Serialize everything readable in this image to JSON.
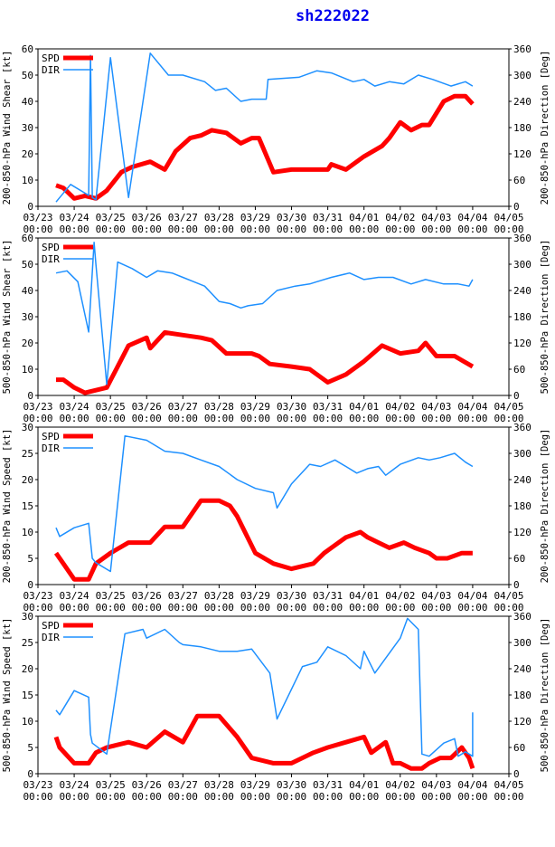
{
  "title": "sh222022",
  "colors": {
    "spd": "#ff0000",
    "dir": "#1e90ff",
    "axis": "#000000",
    "title": "#0000ee"
  },
  "chart_data": [
    {
      "type": "line",
      "ylabel": "200-850-hPa Wind Shear [kt]",
      "y2label": "200-850-hPa Direction [Deg]",
      "ylim": [
        0,
        60
      ],
      "yticks": [
        0,
        10,
        20,
        30,
        40,
        50,
        60
      ],
      "y2lim": [
        0,
        360
      ],
      "y2ticks": [
        0,
        60,
        120,
        180,
        240,
        300,
        360
      ],
      "xlim": [
        0,
        13
      ],
      "xticks": [
        "03/23",
        "03/24",
        "03/25",
        "03/26",
        "03/27",
        "03/28",
        "03/29",
        "03/30",
        "03/31",
        "04/01",
        "04/02",
        "04/03",
        "04/04",
        "04/05"
      ],
      "xtick_time": "00:00",
      "legend": [
        "SPD",
        "DIR"
      ],
      "series": [
        {
          "name": "SPD",
          "axis": "left",
          "x": [
            0.5,
            0.7,
            1.0,
            1.3,
            1.6,
            1.9,
            2.3,
            2.6,
            3.1,
            3.5,
            3.8,
            4.2,
            4.5,
            4.8,
            5.2,
            5.6,
            5.9,
            6.1,
            6.5,
            7.0,
            7.5,
            8.0,
            8.1,
            8.5,
            9.0,
            9.5,
            9.7,
            10.0,
            10.3,
            10.6,
            10.8,
            11.2,
            11.5,
            11.8,
            12.0
          ],
          "y": [
            8,
            7,
            3,
            4,
            3,
            6,
            13,
            15,
            17,
            14,
            21,
            26,
            27,
            29,
            28,
            24,
            26,
            26,
            13,
            14,
            14,
            14,
            16,
            14,
            19,
            23,
            26,
            32,
            29,
            31,
            31,
            40,
            42,
            42,
            39
          ]
        },
        {
          "name": "DIR",
          "axis": "right",
          "x": [
            0.5,
            0.9,
            1.4,
            1.45,
            1.5,
            1.6,
            2.0,
            2.5,
            3.1,
            3.6,
            4.0,
            4.6,
            4.9,
            5.2,
            5.6,
            5.9,
            6.3,
            6.35,
            7.2,
            7.7,
            8.1,
            8.7,
            9.0,
            9.3,
            9.7,
            10.1,
            10.5,
            10.9,
            11.4,
            11.8,
            12.0
          ],
          "y": [
            10,
            50,
            25,
            345,
            20,
            15,
            340,
            20,
            350,
            300,
            300,
            285,
            265,
            270,
            240,
            245,
            245,
            290,
            295,
            310,
            305,
            285,
            290,
            275,
            285,
            280,
            300,
            290,
            275,
            285,
            275
          ]
        }
      ]
    },
    {
      "type": "line",
      "ylabel": "500-850-hPa Wind Shear [kt]",
      "y2label": "500-850-hPa Direction [Deg]",
      "ylim": [
        0,
        60
      ],
      "yticks": [
        0,
        10,
        20,
        30,
        40,
        50,
        60
      ],
      "y2lim": [
        0,
        360
      ],
      "y2ticks": [
        0,
        60,
        120,
        180,
        240,
        300,
        360
      ],
      "xlim": [
        0,
        13
      ],
      "xticks": [
        "03/23",
        "03/24",
        "03/25",
        "03/26",
        "03/27",
        "03/28",
        "03/29",
        "03/30",
        "03/31",
        "04/01",
        "04/02",
        "04/03",
        "04/04",
        "04/05"
      ],
      "xtick_time": "00:00",
      "legend": [
        "SPD",
        "DIR"
      ],
      "series": [
        {
          "name": "SPD",
          "axis": "left",
          "x": [
            0.5,
            0.7,
            1.0,
            1.3,
            1.6,
            1.9,
            2.5,
            3.0,
            3.1,
            3.5,
            4.0,
            4.5,
            4.8,
            5.2,
            5.5,
            5.9,
            6.1,
            6.4,
            7.0,
            7.5,
            8.0,
            8.5,
            9.0,
            9.5,
            10.0,
            10.5,
            10.7,
            11.0,
            11.5,
            12.0
          ],
          "y": [
            6,
            6,
            3,
            1,
            2,
            3,
            19,
            22,
            18,
            24,
            23,
            22,
            21,
            16,
            16,
            16,
            15,
            12,
            11,
            10,
            5,
            8,
            13,
            19,
            16,
            17,
            20,
            15,
            15,
            11
          ]
        },
        {
          "name": "DIR",
          "axis": "right",
          "x": [
            0.5,
            0.8,
            1.1,
            1.4,
            1.55,
            1.6,
            1.9,
            2.2,
            2.6,
            3.0,
            3.3,
            3.7,
            4.0,
            4.3,
            4.6,
            5.0,
            5.3,
            5.6,
            5.8,
            6.2,
            6.6,
            7.1,
            7.5,
            7.7,
            8.1,
            8.6,
            9.0,
            9.4,
            9.8,
            10.3,
            10.7,
            11.2,
            11.6,
            11.9,
            12.0
          ],
          "y": [
            280,
            285,
            260,
            145,
            350,
            300,
            25,
            305,
            290,
            270,
            285,
            280,
            270,
            260,
            250,
            215,
            210,
            200,
            205,
            210,
            240,
            250,
            255,
            260,
            270,
            280,
            265,
            270,
            270,
            255,
            265,
            255,
            255,
            250,
            265
          ]
        }
      ]
    },
    {
      "type": "line",
      "ylabel": "200-850-hPa Wind Speed [kt]",
      "y2label": "200-850-hPa Direction [Deg]",
      "ylim": [
        0,
        30
      ],
      "yticks": [
        0,
        5,
        10,
        15,
        20,
        25,
        30
      ],
      "y2lim": [
        0,
        360
      ],
      "y2ticks": [
        0,
        60,
        120,
        180,
        240,
        300,
        360
      ],
      "xlim": [
        0,
        13
      ],
      "xticks": [
        "03/23",
        "03/24",
        "03/25",
        "03/26",
        "03/27",
        "03/28",
        "03/29",
        "03/30",
        "03/31",
        "04/01",
        "04/02",
        "04/03",
        "04/04",
        "04/05"
      ],
      "xtick_time": "00:00",
      "legend": [
        "SPD",
        "DIR"
      ],
      "series": [
        {
          "name": "SPD",
          "axis": "left",
          "x": [
            0.5,
            0.7,
            1.0,
            1.4,
            1.6,
            2.0,
            2.5,
            3.1,
            3.5,
            4.0,
            4.5,
            5.0,
            5.3,
            5.5,
            6.0,
            6.5,
            7.0,
            7.6,
            7.9,
            8.1,
            8.5,
            8.9,
            9.1,
            9.4,
            9.7,
            10.1,
            10.4,
            10.8,
            11.0,
            11.3,
            11.7,
            12.0
          ],
          "y": [
            6,
            4,
            1,
            1,
            4,
            6,
            8,
            8,
            11,
            11,
            16,
            16,
            15,
            13,
            6,
            4,
            3,
            4,
            6,
            7,
            9,
            10,
            9,
            8,
            7,
            8,
            7,
            6,
            5,
            5,
            6,
            6
          ]
        },
        {
          "name": "DIR",
          "axis": "right",
          "x": [
            0.5,
            0.6,
            1.0,
            1.4,
            1.5,
            1.6,
            2.0,
            2.4,
            3.0,
            3.5,
            4.0,
            4.5,
            5.0,
            5.5,
            6.0,
            6.5,
            6.6,
            7.0,
            7.5,
            7.8,
            8.2,
            8.5,
            8.8,
            9.1,
            9.4,
            9.6,
            10.0,
            10.5,
            10.8,
            11.1,
            11.5,
            11.8,
            12.0
          ],
          "y": [
            130,
            110,
            130,
            140,
            60,
            50,
            30,
            340,
            330,
            305,
            300,
            285,
            270,
            240,
            220,
            210,
            175,
            230,
            275,
            270,
            285,
            270,
            255,
            265,
            270,
            250,
            275,
            290,
            285,
            290,
            300,
            280,
            270
          ]
        }
      ]
    },
    {
      "type": "line",
      "ylabel": "500-850-hPa Wind Speed [kt]",
      "y2label": "500-850-hPa Direction [Deg]",
      "ylim": [
        0,
        30
      ],
      "yticks": [
        0,
        5,
        10,
        15,
        20,
        25,
        30
      ],
      "y2lim": [
        0,
        360
      ],
      "y2ticks": [
        0,
        60,
        120,
        180,
        240,
        300,
        360
      ],
      "xlim": [
        0,
        13
      ],
      "xticks": [
        "03/23",
        "03/24",
        "03/25",
        "03/26",
        "03/27",
        "03/28",
        "03/29",
        "03/30",
        "03/31",
        "04/01",
        "04/02",
        "04/03",
        "04/04",
        "04/05"
      ],
      "xtick_time": "00:00",
      "legend": [
        "SPD",
        "DIR"
      ],
      "series": [
        {
          "name": "SPD",
          "axis": "left",
          "x": [
            0.5,
            0.6,
            1.0,
            1.4,
            1.6,
            1.9,
            2.5,
            3.0,
            3.5,
            4.0,
            4.4,
            4.7,
            5.0,
            5.5,
            5.9,
            6.5,
            7.0,
            7.6,
            8.0,
            8.5,
            9.0,
            9.2,
            9.6,
            9.8,
            10.0,
            10.3,
            10.6,
            10.8,
            11.1,
            11.4,
            11.7,
            11.9,
            12.0
          ],
          "y": [
            7,
            5,
            2,
            2,
            4,
            5,
            6,
            5,
            8,
            6,
            11,
            11,
            11,
            7,
            3,
            2,
            2,
            4,
            5,
            6,
            7,
            4,
            6,
            2,
            2,
            1,
            1,
            2,
            3,
            3,
            5,
            3,
            1
          ]
        },
        {
          "name": "DIR",
          "axis": "right",
          "x": [
            0.5,
            0.6,
            1.0,
            1.4,
            1.45,
            1.5,
            1.9,
            2.4,
            2.9,
            3.0,
            3.5,
            3.9,
            4.0,
            4.5,
            5.0,
            5.5,
            5.9,
            6.4,
            6.6,
            7.3,
            7.7,
            8.0,
            8.5,
            8.9,
            9.0,
            9.3,
            10.0,
            10.2,
            10.5,
            10.6,
            10.8,
            11.2,
            11.5,
            11.6,
            11.8,
            12.0,
            12.0
          ],
          "y": [
            145,
            135,
            190,
            175,
            90,
            70,
            45,
            320,
            330,
            310,
            330,
            300,
            295,
            290,
            280,
            280,
            285,
            230,
            125,
            245,
            255,
            290,
            270,
            240,
            280,
            230,
            310,
            355,
            330,
            45,
            40,
            70,
            80,
            40,
            50,
            40,
            140
          ]
        }
      ]
    }
  ]
}
